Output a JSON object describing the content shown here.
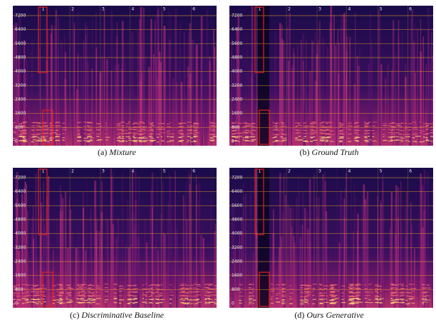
{
  "panels": [
    {
      "label": "(a)",
      "caption": "Mixture",
      "yticks": [
        7200,
        6400,
        5600,
        4800,
        4000,
        3200,
        2400,
        1600,
        800,
        0
      ],
      "markers": [
        1,
        2,
        3,
        4,
        5,
        6
      ]
    },
    {
      "label": "(b)",
      "caption": "Ground Truth",
      "yticks": [
        7200,
        6400,
        5600,
        4800,
        4000,
        3200,
        2400,
        1600,
        800,
        0
      ],
      "markers": [
        1,
        2,
        3,
        4,
        5,
        6
      ]
    },
    {
      "label": "(c)",
      "caption": "Discriminative Baseline",
      "yticks": [
        7200,
        6400,
        5600,
        4800,
        4000,
        3200,
        2400,
        1600,
        800,
        0
      ],
      "markers": [
        1,
        2,
        3,
        4,
        5,
        6
      ]
    },
    {
      "label": "(d)",
      "caption": "Ours Generative",
      "yticks": [
        7200,
        6400,
        5600,
        4800,
        4000,
        3200,
        2400,
        1600,
        800,
        0
      ],
      "markers": [
        1,
        2,
        3,
        4,
        5,
        6
      ]
    }
  ]
}
